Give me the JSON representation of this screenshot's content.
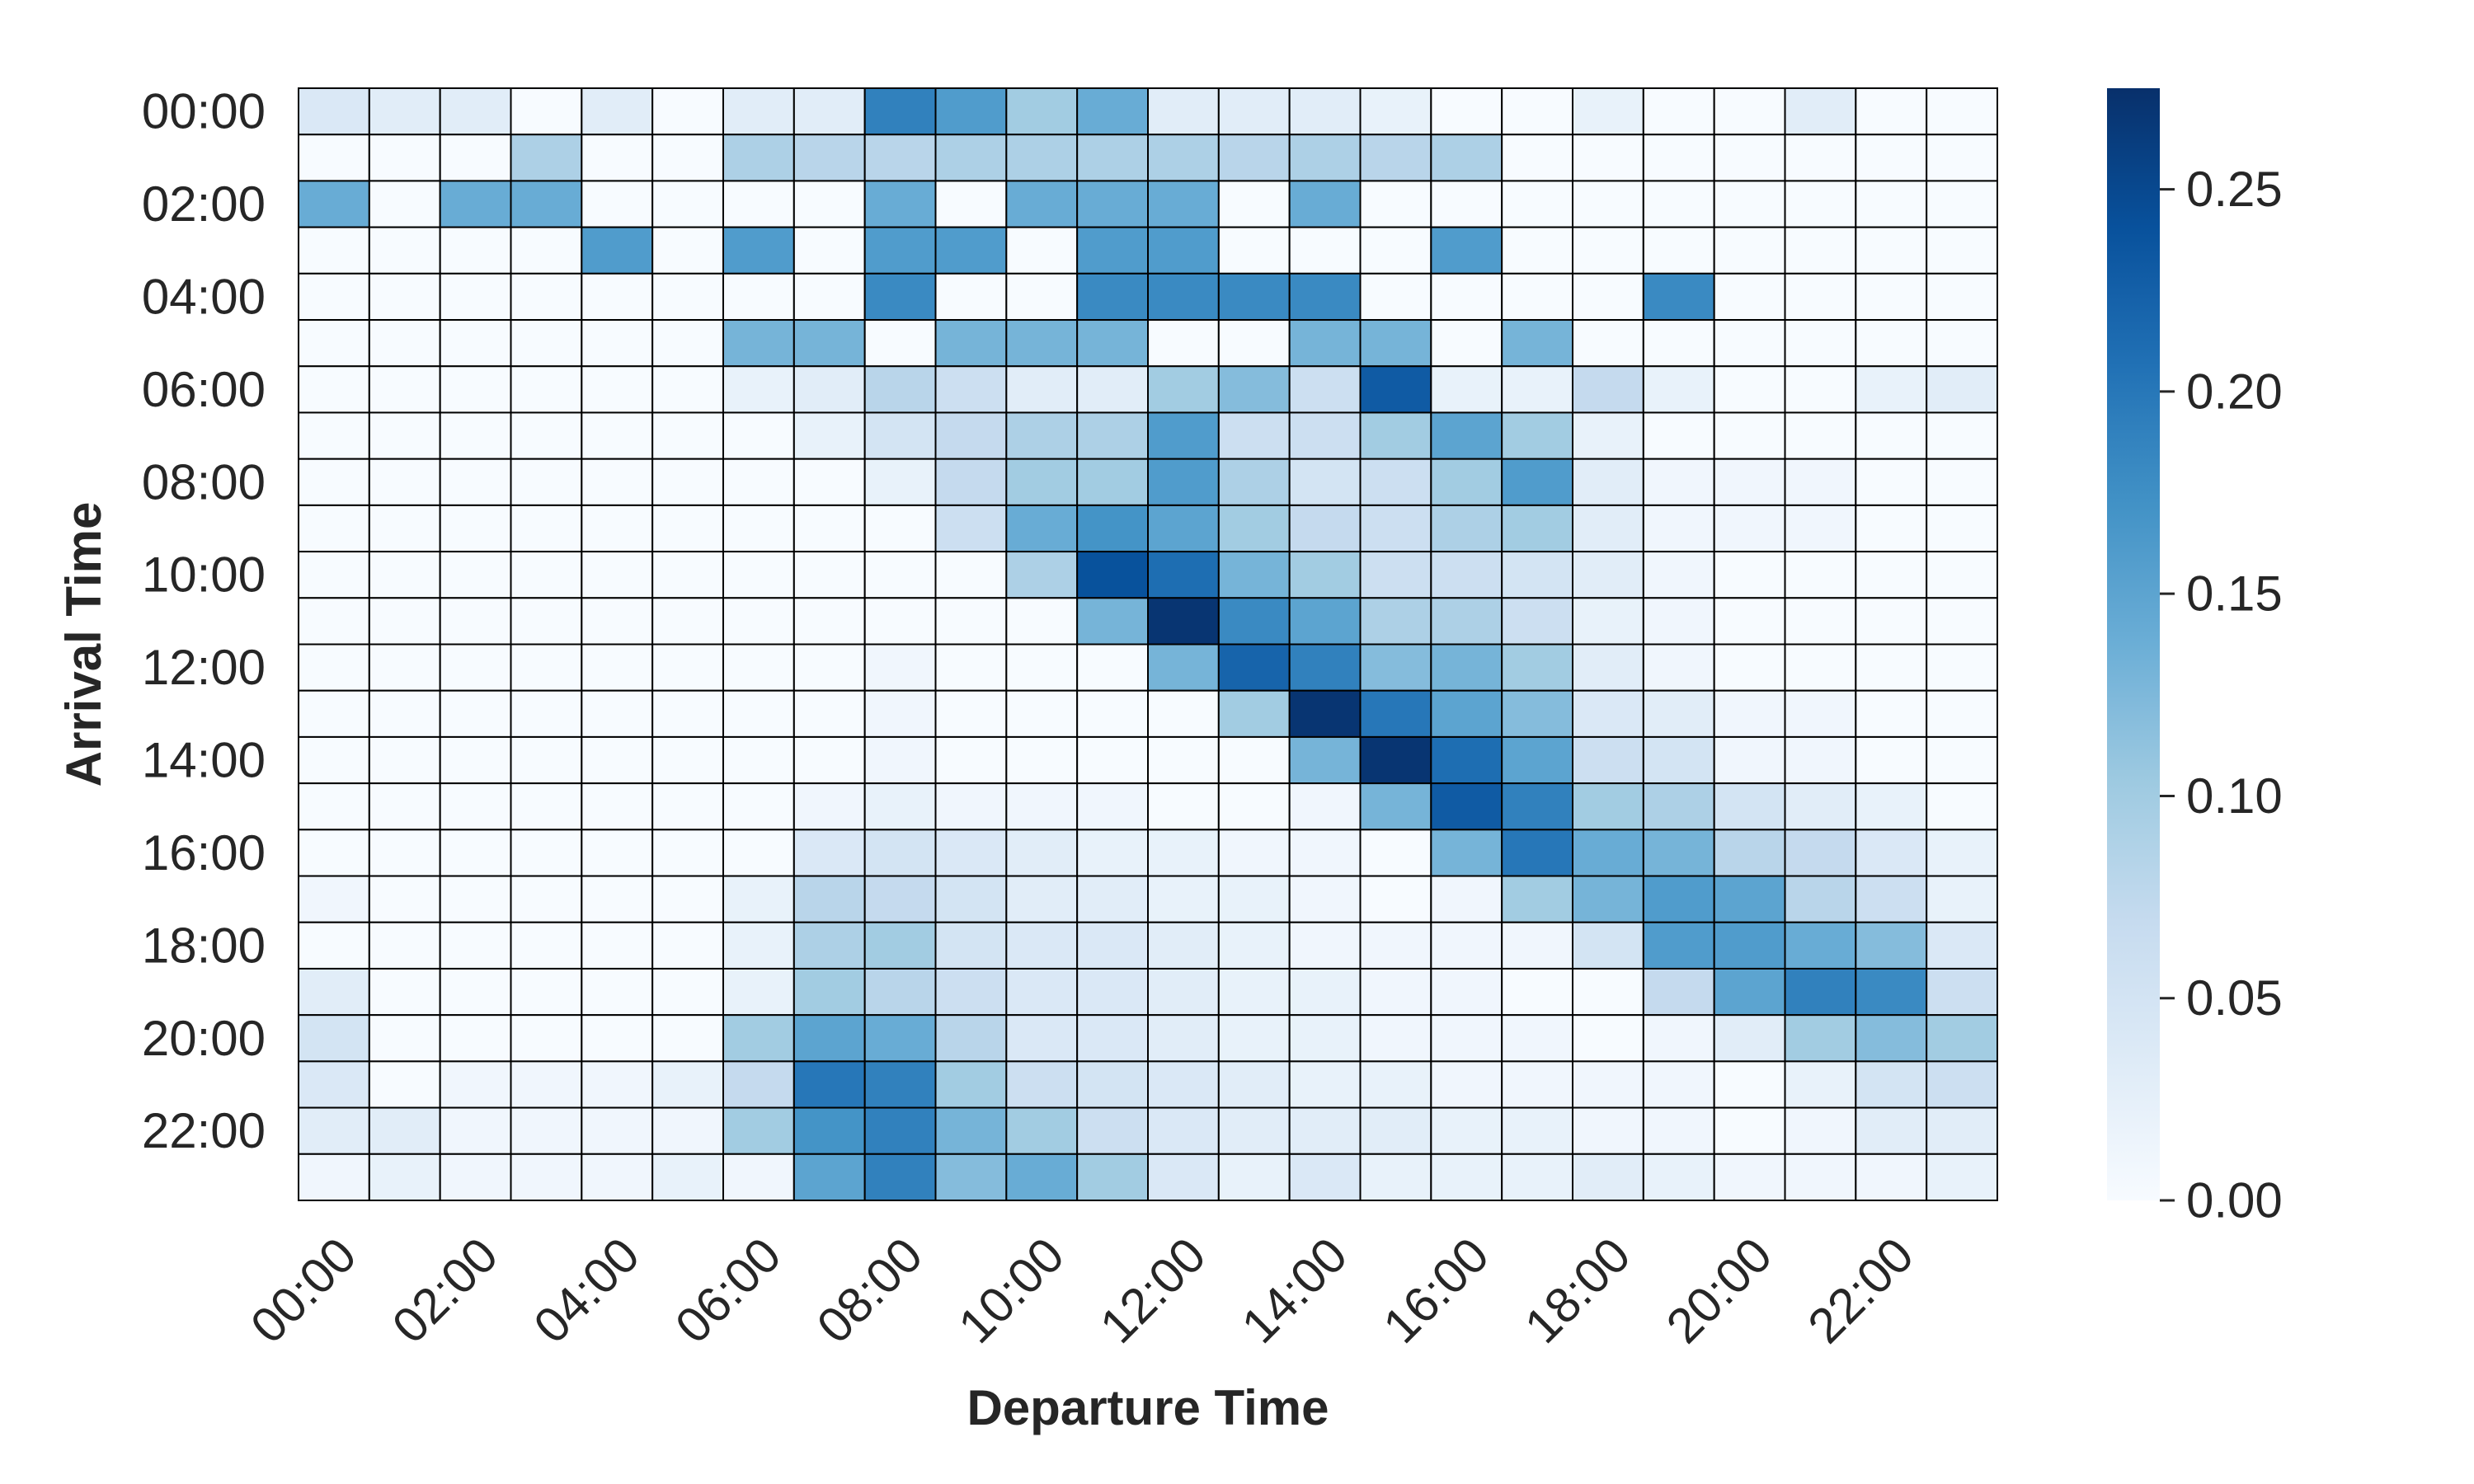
{
  "chart_data": {
    "type": "heatmap",
    "xlabel": "Departure Time",
    "ylabel": "Arrival Time",
    "x_tick_labels": [
      "00:00",
      "02:00",
      "04:00",
      "06:00",
      "08:00",
      "10:00",
      "12:00",
      "14:00",
      "16:00",
      "18:00",
      "20:00",
      "22:00"
    ],
    "y_tick_labels": [
      "00:00",
      "02:00",
      "04:00",
      "06:00",
      "08:00",
      "10:00",
      "12:00",
      "14:00",
      "16:00",
      "18:00",
      "20:00",
      "22:00"
    ],
    "colorbar": {
      "colormap": "Blues",
      "range": [
        0,
        0.275
      ],
      "ticks": [
        "0.00",
        "0.05",
        "0.10",
        "0.15",
        "0.20",
        "0.25"
      ],
      "tick_values": [
        0,
        0.05,
        0.1,
        0.15,
        0.2,
        0.25
      ]
    },
    "n_rows": 24,
    "n_cols": 24,
    "grid_line_color": "#000000",
    "values": [
      [
        0.04,
        0.03,
        0.03,
        0.0,
        0.03,
        0.0,
        0.03,
        0.03,
        0.19,
        0.16,
        0.1,
        0.14,
        0.03,
        0.03,
        0.03,
        0.02,
        0.0,
        0.0,
        0.02,
        0.0,
        0.0,
        0.03,
        0.0,
        0.0
      ],
      [
        0.0,
        0.0,
        0.0,
        0.09,
        0.0,
        0.0,
        0.09,
        0.08,
        0.08,
        0.09,
        0.09,
        0.09,
        0.09,
        0.08,
        0.09,
        0.08,
        0.09,
        0.0,
        0.0,
        0.0,
        0.0,
        0.0,
        0.0,
        0.0
      ],
      [
        0.14,
        0.0,
        0.14,
        0.14,
        0.0,
        0.0,
        0.0,
        0.0,
        0.14,
        0.0,
        0.14,
        0.14,
        0.14,
        0.0,
        0.14,
        0.0,
        0.0,
        0.0,
        0.0,
        0.0,
        0.0,
        0.0,
        0.0,
        0.0
      ],
      [
        0.0,
        0.0,
        0.0,
        0.0,
        0.16,
        0.0,
        0.16,
        0.0,
        0.16,
        0.16,
        0.0,
        0.16,
        0.16,
        0.0,
        0.0,
        0.0,
        0.16,
        0.0,
        0.0,
        0.0,
        0.0,
        0.0,
        0.0,
        0.0
      ],
      [
        0.0,
        0.0,
        0.0,
        0.0,
        0.0,
        0.0,
        0.0,
        0.0,
        0.18,
        0.0,
        0.0,
        0.18,
        0.18,
        0.18,
        0.18,
        0.0,
        0.0,
        0.0,
        0.0,
        0.18,
        0.0,
        0.0,
        0.0,
        0.0
      ],
      [
        0.0,
        0.0,
        0.0,
        0.0,
        0.0,
        0.0,
        0.13,
        0.13,
        0.0,
        0.13,
        0.13,
        0.13,
        0.0,
        0.0,
        0.13,
        0.13,
        0.0,
        0.13,
        0.0,
        0.0,
        0.0,
        0.0,
        0.0,
        0.0
      ],
      [
        0.0,
        0.0,
        0.0,
        0.0,
        0.0,
        0.0,
        0.02,
        0.03,
        0.08,
        0.06,
        0.03,
        0.03,
        0.1,
        0.12,
        0.06,
        0.23,
        0.02,
        0.02,
        0.07,
        0.02,
        0.0,
        0.0,
        0.02,
        0.03
      ],
      [
        0.0,
        0.0,
        0.0,
        0.0,
        0.0,
        0.0,
        0.0,
        0.02,
        0.05,
        0.07,
        0.09,
        0.09,
        0.16,
        0.06,
        0.06,
        0.1,
        0.15,
        0.1,
        0.02,
        0.0,
        0.0,
        0.0,
        0.0,
        0.0
      ],
      [
        0.0,
        0.0,
        0.0,
        0.0,
        0.0,
        0.0,
        0.0,
        0.0,
        0.02,
        0.07,
        0.1,
        0.1,
        0.16,
        0.09,
        0.05,
        0.06,
        0.1,
        0.16,
        0.03,
        0.01,
        0.01,
        0.01,
        0.0,
        0.0
      ],
      [
        0.0,
        0.0,
        0.0,
        0.0,
        0.0,
        0.0,
        0.0,
        0.0,
        0.0,
        0.06,
        0.14,
        0.17,
        0.15,
        0.1,
        0.07,
        0.06,
        0.09,
        0.1,
        0.03,
        0.01,
        0.01,
        0.01,
        0.0,
        0.0
      ],
      [
        0.0,
        0.0,
        0.0,
        0.0,
        0.0,
        0.0,
        0.0,
        0.0,
        0.0,
        0.0,
        0.09,
        0.24,
        0.21,
        0.13,
        0.1,
        0.06,
        0.06,
        0.05,
        0.03,
        0.01,
        0.0,
        0.0,
        0.0,
        0.0
      ],
      [
        0.0,
        0.0,
        0.0,
        0.0,
        0.0,
        0.0,
        0.0,
        0.0,
        0.0,
        0.0,
        0.0,
        0.13,
        0.27,
        0.18,
        0.15,
        0.09,
        0.09,
        0.06,
        0.02,
        0.01,
        0.0,
        0.0,
        0.0,
        0.0
      ],
      [
        0.0,
        0.0,
        0.0,
        0.0,
        0.0,
        0.0,
        0.0,
        0.0,
        0.01,
        0.0,
        0.0,
        0.0,
        0.13,
        0.22,
        0.19,
        0.12,
        0.13,
        0.1,
        0.03,
        0.01,
        0.0,
        0.0,
        0.0,
        0.0
      ],
      [
        0.0,
        0.0,
        0.0,
        0.0,
        0.0,
        0.0,
        0.0,
        0.0,
        0.01,
        0.0,
        0.0,
        0.0,
        0.0,
        0.1,
        0.27,
        0.2,
        0.15,
        0.12,
        0.04,
        0.03,
        0.01,
        0.01,
        0.0,
        0.0
      ],
      [
        0.0,
        0.0,
        0.0,
        0.0,
        0.0,
        0.0,
        0.0,
        0.0,
        0.01,
        0.0,
        0.0,
        0.0,
        0.0,
        0.0,
        0.13,
        0.27,
        0.21,
        0.15,
        0.06,
        0.05,
        0.01,
        0.01,
        0.0,
        0.0
      ],
      [
        0.0,
        0.0,
        0.0,
        0.0,
        0.0,
        0.0,
        0.0,
        0.01,
        0.02,
        0.01,
        0.01,
        0.01,
        0.0,
        0.0,
        0.01,
        0.13,
        0.23,
        0.19,
        0.1,
        0.09,
        0.05,
        0.03,
        0.02,
        0.0
      ],
      [
        0.0,
        0.0,
        0.0,
        0.0,
        0.0,
        0.0,
        0.0,
        0.04,
        0.05,
        0.04,
        0.03,
        0.02,
        0.02,
        0.01,
        0.01,
        0.0,
        0.13,
        0.2,
        0.14,
        0.13,
        0.08,
        0.07,
        0.04,
        0.02
      ],
      [
        0.01,
        0.0,
        0.0,
        0.0,
        0.0,
        0.0,
        0.02,
        0.08,
        0.07,
        0.05,
        0.03,
        0.03,
        0.02,
        0.02,
        0.01,
        0.0,
        0.01,
        0.1,
        0.13,
        0.16,
        0.15,
        0.08,
        0.06,
        0.02
      ],
      [
        0.0,
        0.0,
        0.0,
        0.0,
        0.0,
        0.0,
        0.02,
        0.09,
        0.1,
        0.05,
        0.04,
        0.04,
        0.03,
        0.02,
        0.01,
        0.01,
        0.01,
        0.01,
        0.05,
        0.16,
        0.16,
        0.14,
        0.12,
        0.04
      ],
      [
        0.03,
        0.0,
        0.0,
        0.0,
        0.0,
        0.0,
        0.02,
        0.1,
        0.08,
        0.06,
        0.04,
        0.04,
        0.03,
        0.02,
        0.02,
        0.01,
        0.01,
        0.0,
        0.0,
        0.07,
        0.15,
        0.19,
        0.18,
        0.06
      ],
      [
        0.05,
        0.0,
        0.0,
        0.0,
        0.0,
        0.0,
        0.1,
        0.15,
        0.14,
        0.08,
        0.04,
        0.04,
        0.03,
        0.02,
        0.02,
        0.01,
        0.01,
        0.01,
        0.0,
        0.01,
        0.03,
        0.1,
        0.12,
        0.1
      ],
      [
        0.04,
        0.0,
        0.01,
        0.01,
        0.01,
        0.02,
        0.07,
        0.2,
        0.19,
        0.1,
        0.06,
        0.05,
        0.04,
        0.03,
        0.02,
        0.02,
        0.01,
        0.01,
        0.01,
        0.01,
        0.0,
        0.02,
        0.05,
        0.06
      ],
      [
        0.03,
        0.03,
        0.01,
        0.01,
        0.01,
        0.01,
        0.1,
        0.17,
        0.19,
        0.13,
        0.1,
        0.06,
        0.04,
        0.03,
        0.03,
        0.03,
        0.02,
        0.02,
        0.01,
        0.01,
        0.0,
        0.01,
        0.03,
        0.03
      ],
      [
        0.01,
        0.02,
        0.01,
        0.01,
        0.01,
        0.02,
        0.01,
        0.15,
        0.19,
        0.12,
        0.14,
        0.1,
        0.04,
        0.02,
        0.04,
        0.02,
        0.02,
        0.02,
        0.03,
        0.02,
        0.01,
        0.01,
        0.01,
        0.02
      ]
    ]
  }
}
